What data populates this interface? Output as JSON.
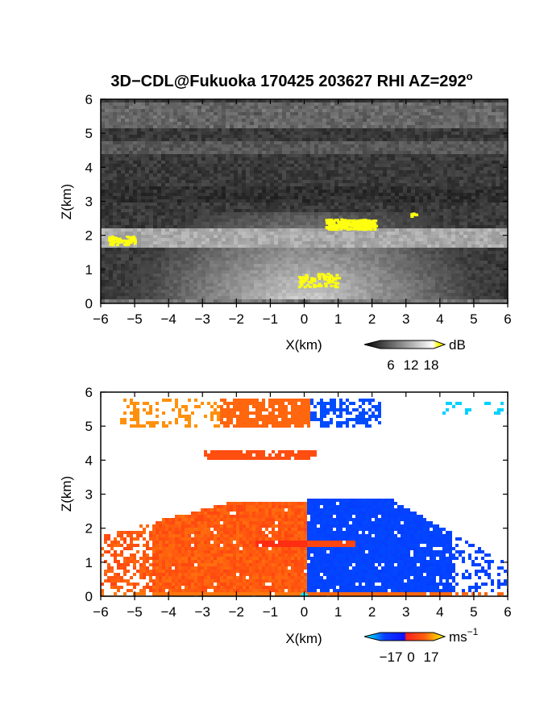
{
  "chart_data": [
    {
      "type": "heatmap",
      "title": "3D−CDL@Fukuoka 170425 203627 RHI AZ=292",
      "title_superscript": "o",
      "xlabel": "X(km)",
      "ylabel": "Z(km)",
      "xlim": [
        -6,
        6
      ],
      "ylim": [
        0,
        6
      ],
      "x_ticks": [
        "−6",
        "−5",
        "−4",
        "−3",
        "−2",
        "−1",
        "0",
        "1",
        "2",
        "3",
        "4",
        "5",
        "6"
      ],
      "y_ticks": [
        "0",
        "1",
        "2",
        "3",
        "4",
        "5",
        "6"
      ],
      "colorbar": {
        "unit": "dB",
        "ticks": [
          6,
          12,
          18
        ],
        "tick_labels": [
          "6",
          "12",
          "18"
        ],
        "colormap": "grayscale"
      },
      "features": [
        {
          "name": "boundary-layer-echo",
          "x": [
            -6,
            6
          ],
          "z": [
            0,
            2.8
          ]
        },
        {
          "name": "high-echo-patch",
          "x": [
            0.6,
            2.1
          ],
          "z": [
            2.2,
            2.5
          ]
        }
      ]
    },
    {
      "type": "heatmap",
      "xlabel": "X(km)",
      "ylabel": "Z(km)",
      "xlim": [
        -6,
        6
      ],
      "ylim": [
        0,
        6
      ],
      "x_ticks": [
        "−6",
        "−5",
        "−4",
        "−3",
        "−2",
        "−1",
        "0",
        "1",
        "2",
        "3",
        "4",
        "5",
        "6"
      ],
      "y_ticks": [
        "0",
        "1",
        "2",
        "3",
        "4",
        "5",
        "6"
      ],
      "colorbar": {
        "unit": "ms",
        "unit_superscript": "−1",
        "ticks": [
          -17,
          0,
          17
        ],
        "tick_labels": [
          "−17",
          "0",
          "17"
        ],
        "colormap": "cyan-blue-red-yellow"
      },
      "features": [
        {
          "name": "receding-flow",
          "x": [
            -6,
            0
          ],
          "z": [
            0,
            2.8
          ],
          "velocity": 8
        },
        {
          "name": "approaching-flow",
          "x": [
            0,
            5.5
          ],
          "z": [
            0,
            2.9
          ],
          "velocity": -12
        },
        {
          "name": "upper-layer",
          "x": [
            -5.5,
            0.2
          ],
          "z": [
            5.0,
            5.9
          ]
        },
        {
          "name": "thin-layer",
          "x": [
            -3.0,
            0.3
          ],
          "z": [
            4.1,
            4.3
          ]
        }
      ]
    }
  ]
}
